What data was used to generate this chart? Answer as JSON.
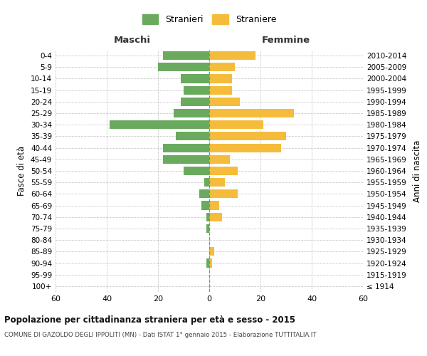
{
  "age_groups": [
    "100+",
    "95-99",
    "90-94",
    "85-89",
    "80-84",
    "75-79",
    "70-74",
    "65-69",
    "60-64",
    "55-59",
    "50-54",
    "45-49",
    "40-44",
    "35-39",
    "30-34",
    "25-29",
    "20-24",
    "15-19",
    "10-14",
    "5-9",
    "0-4"
  ],
  "birth_years": [
    "≤ 1914",
    "1915-1919",
    "1920-1924",
    "1925-1929",
    "1930-1934",
    "1935-1939",
    "1940-1944",
    "1945-1949",
    "1950-1954",
    "1955-1959",
    "1960-1964",
    "1965-1969",
    "1970-1974",
    "1975-1979",
    "1980-1984",
    "1985-1989",
    "1990-1994",
    "1995-1999",
    "2000-2004",
    "2005-2009",
    "2010-2014"
  ],
  "maschi": [
    0,
    0,
    1,
    0,
    0,
    1,
    1,
    3,
    4,
    2,
    10,
    18,
    18,
    13,
    39,
    14,
    11,
    10,
    11,
    20,
    18
  ],
  "femmine": [
    0,
    0,
    1,
    2,
    0,
    0,
    5,
    4,
    11,
    6,
    11,
    8,
    28,
    30,
    21,
    33,
    12,
    9,
    9,
    10,
    18
  ],
  "maschi_color": "#6aaa5e",
  "femmine_color": "#f5bc3c",
  "title": "Popolazione per cittadinanza straniera per età e sesso - 2015",
  "subtitle": "COMUNE DI GAZOLDO DEGLI IPPOLITI (MN) - Dati ISTAT 1° gennaio 2015 - Elaborazione TUTTITALIA.IT",
  "ylabel_left": "Fasce di età",
  "ylabel_right": "Anni di nascita",
  "xlabel_left": "Maschi",
  "xlabel_right": "Femmine",
  "legend_maschi": "Stranieri",
  "legend_femmine": "Straniere",
  "xlim": 60,
  "background_color": "#ffffff",
  "grid_color": "#cccccc"
}
